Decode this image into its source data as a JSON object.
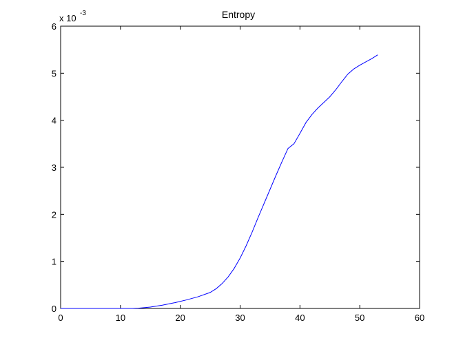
{
  "chart_data": {
    "type": "line",
    "title": "Entropy",
    "y_exponent_label": {
      "base": "x 10",
      "exponent": "-3"
    },
    "x": [
      0,
      2,
      4,
      6,
      8,
      10,
      12,
      13,
      15,
      17,
      19,
      21,
      23,
      25,
      26,
      27,
      28,
      29,
      30,
      31,
      32,
      33,
      34,
      35,
      36,
      37,
      38,
      39,
      40,
      41,
      42,
      43,
      44,
      45,
      46,
      47,
      48,
      49,
      50,
      51,
      52,
      53
    ],
    "series": [
      {
        "name": "Entropy",
        "color": "#0000ff",
        "values": [
          0,
          0,
          0,
          0,
          0,
          0,
          0,
          0.005,
          0.03,
          0.07,
          0.12,
          0.18,
          0.25,
          0.34,
          0.42,
          0.53,
          0.67,
          0.85,
          1.07,
          1.33,
          1.62,
          1.93,
          2.23,
          2.53,
          2.83,
          3.12,
          3.4,
          3.5,
          3.72,
          3.95,
          4.12,
          4.26,
          4.38,
          4.5,
          4.65,
          4.82,
          4.98,
          5.09,
          5.17,
          5.24,
          5.31,
          5.39
        ]
      }
    ],
    "xlim": [
      0,
      60
    ],
    "xticks": [
      0,
      10,
      20,
      30,
      40,
      50,
      60
    ],
    "ylim": [
      0,
      6
    ],
    "yticks": [
      0,
      1,
      2,
      3,
      4,
      5,
      6
    ],
    "grid": false
  }
}
